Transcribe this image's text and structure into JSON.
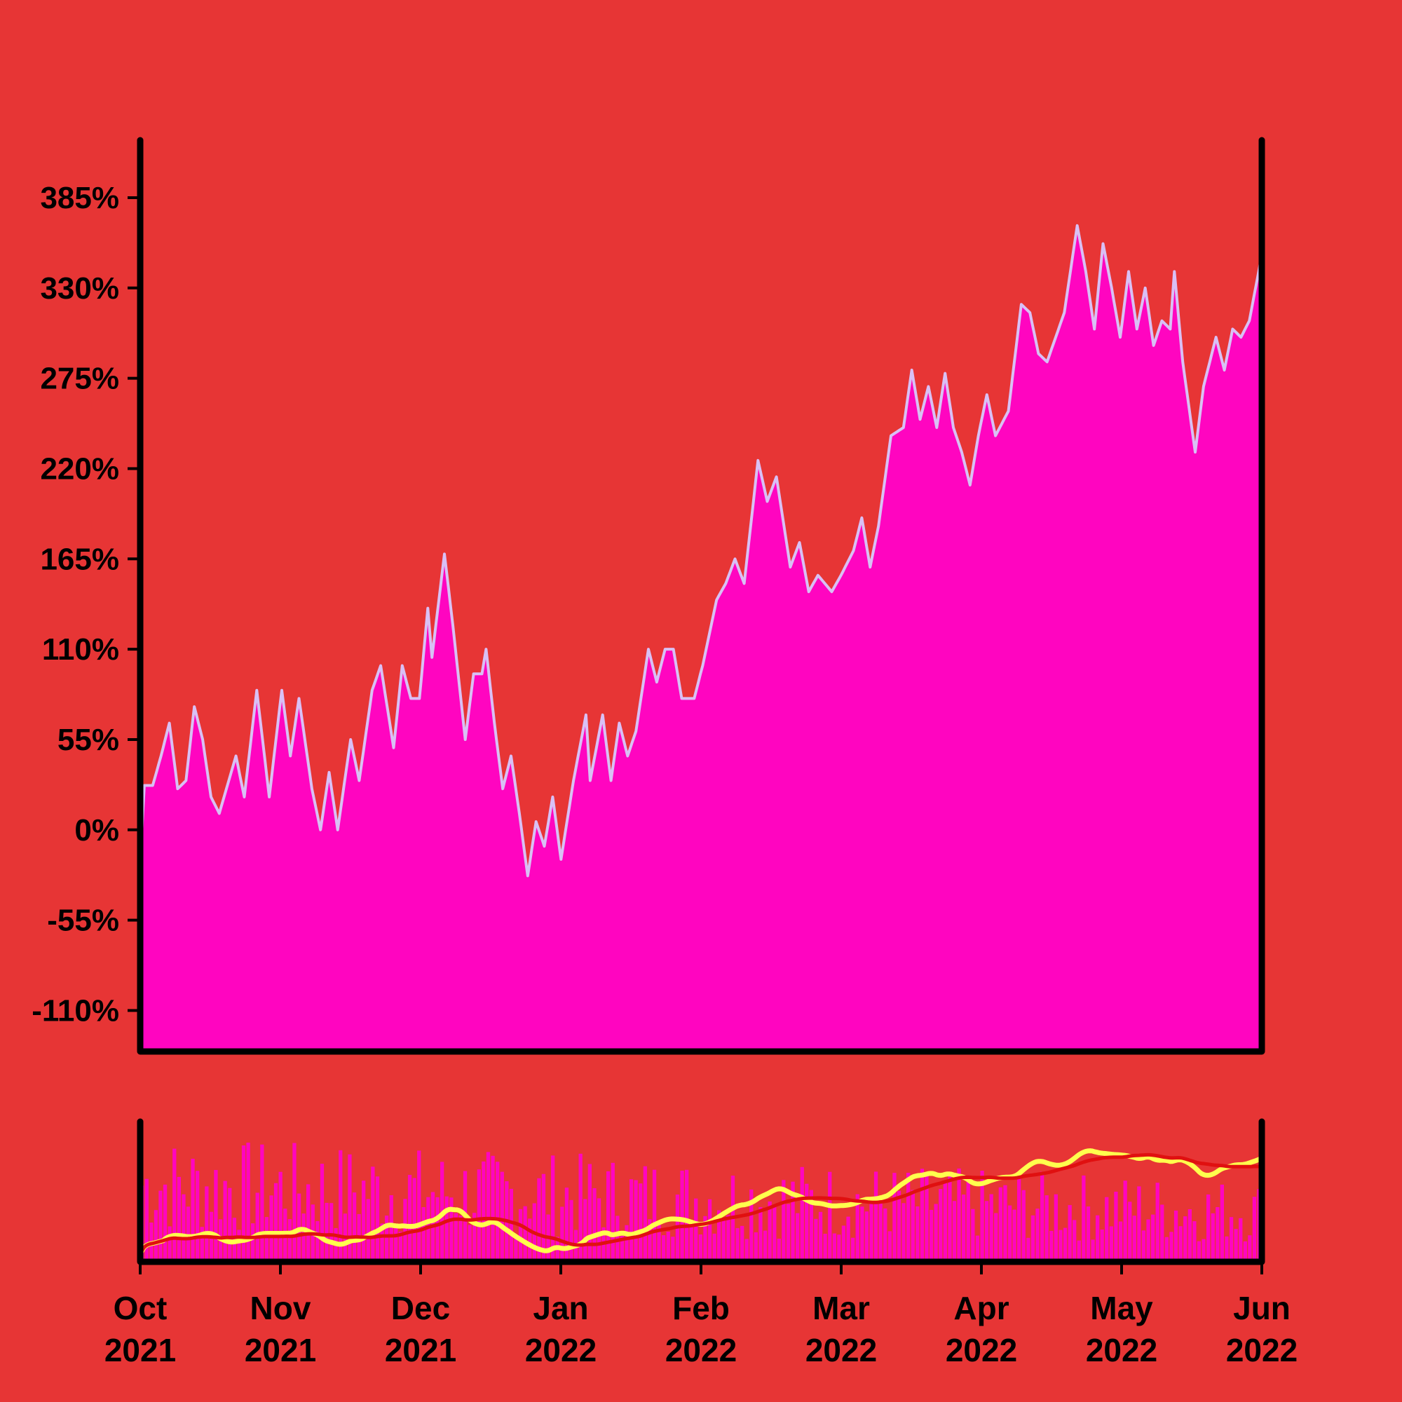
{
  "colors": {
    "background": "#e73535",
    "area_fill": "#ff05c0",
    "area_line": "#d9c0f5",
    "volume_bars": "#ff05c0",
    "fast_ma": "#ffff4d",
    "slow_ma": "#e01010",
    "axis": "#000000"
  },
  "chart_data": [
    {
      "type": "area",
      "panel": "price",
      "ylim": [
        -135,
        420
      ],
      "y_ticks": [
        -110,
        -55,
        0,
        55,
        110,
        165,
        220,
        275,
        330,
        385
      ],
      "y_tick_labels": [
        "-110%",
        "-55%",
        "0%",
        "55%",
        "110%",
        "165%",
        "220%",
        "275%",
        "330%",
        "385%"
      ],
      "x_start": "2021-10-01",
      "x_end": "2022-06-01",
      "keypoints": [
        [
          "2021-10-01",
          -18
        ],
        [
          "2021-10-02",
          27
        ],
        [
          "2021-10-04",
          27
        ],
        [
          "2021-10-06",
          45
        ],
        [
          "2021-10-08",
          65
        ],
        [
          "2021-10-10",
          25
        ],
        [
          "2021-10-12",
          30
        ],
        [
          "2021-10-14",
          75
        ],
        [
          "2021-10-16",
          55
        ],
        [
          "2021-10-18",
          20
        ],
        [
          "2021-10-20",
          10
        ],
        [
          "2021-10-24",
          45
        ],
        [
          "2021-10-26",
          20
        ],
        [
          "2021-10-29",
          85
        ],
        [
          "2021-11-01",
          20
        ],
        [
          "2021-11-04",
          85
        ],
        [
          "2021-11-06",
          45
        ],
        [
          "2021-11-08",
          80
        ],
        [
          "2021-11-11",
          25
        ],
        [
          "2021-11-13",
          0
        ],
        [
          "2021-11-15",
          35
        ],
        [
          "2021-11-17",
          0
        ],
        [
          "2021-11-20",
          55
        ],
        [
          "2021-11-22",
          30
        ],
        [
          "2021-11-25",
          85
        ],
        [
          "2021-11-27",
          100
        ],
        [
          "2021-11-30",
          50
        ],
        [
          "2021-12-02",
          100
        ],
        [
          "2021-12-04",
          80
        ],
        [
          "2021-12-06",
          80
        ],
        [
          "2021-12-08",
          135
        ],
        [
          "2021-12-09",
          105
        ],
        [
          "2021-12-12",
          168
        ],
        [
          "2021-12-14",
          125
        ],
        [
          "2021-12-17",
          55
        ],
        [
          "2021-12-19",
          95
        ],
        [
          "2021-12-21",
          95
        ],
        [
          "2021-12-22",
          110
        ],
        [
          "2021-12-24",
          65
        ],
        [
          "2021-12-26",
          25
        ],
        [
          "2021-12-28",
          45
        ],
        [
          "2021-12-30",
          10
        ],
        [
          "2022-01-01",
          -28
        ],
        [
          "2022-01-03",
          5
        ],
        [
          "2022-01-05",
          -10
        ],
        [
          "2022-01-07",
          20
        ],
        [
          "2022-01-09",
          -18
        ],
        [
          "2022-01-12",
          30
        ],
        [
          "2022-01-15",
          70
        ],
        [
          "2022-01-16",
          30
        ],
        [
          "2022-01-19",
          70
        ],
        [
          "2022-01-21",
          30
        ],
        [
          "2022-01-23",
          65
        ],
        [
          "2022-01-25",
          45
        ],
        [
          "2022-01-27",
          60
        ],
        [
          "2022-01-30",
          110
        ],
        [
          "2022-02-01",
          90
        ],
        [
          "2022-02-03",
          110
        ],
        [
          "2022-02-05",
          110
        ],
        [
          "2022-02-07",
          80
        ],
        [
          "2022-02-10",
          80
        ],
        [
          "2022-02-12",
          100
        ],
        [
          "2022-02-15",
          140
        ],
        [
          "2022-02-17",
          150
        ],
        [
          "2022-02-19",
          165
        ],
        [
          "2022-02-21",
          150
        ],
        [
          "2022-02-24",
          225
        ],
        [
          "2022-02-26",
          200
        ],
        [
          "2022-02-28",
          215
        ],
        [
          "2022-03-03",
          160
        ],
        [
          "2022-03-05",
          175
        ],
        [
          "2022-03-07",
          145
        ],
        [
          "2022-03-09",
          155
        ],
        [
          "2022-03-12",
          145
        ],
        [
          "2022-03-15",
          160
        ],
        [
          "2022-03-17",
          170
        ],
        [
          "2022-03-19",
          190
        ],
        [
          "2022-03-21",
          160
        ],
        [
          "2022-03-23",
          185
        ],
        [
          "2022-03-26",
          240
        ],
        [
          "2022-03-29",
          245
        ],
        [
          "2022-03-31",
          280
        ],
        [
          "2022-04-02",
          250
        ],
        [
          "2022-04-04",
          270
        ],
        [
          "2022-04-06",
          245
        ],
        [
          "2022-04-08",
          278
        ],
        [
          "2022-04-10",
          245
        ],
        [
          "2022-04-12",
          230
        ],
        [
          "2022-04-14",
          210
        ],
        [
          "2022-04-16",
          240
        ],
        [
          "2022-04-18",
          265
        ],
        [
          "2022-04-20",
          240
        ],
        [
          "2022-04-23",
          255
        ],
        [
          "2022-04-26",
          320
        ],
        [
          "2022-04-28",
          315
        ],
        [
          "2022-04-30",
          290
        ],
        [
          "2022-05-02",
          285
        ],
        [
          "2022-05-04",
          300
        ],
        [
          "2022-05-06",
          315
        ],
        [
          "2022-05-09",
          368
        ],
        [
          "2022-05-11",
          340
        ],
        [
          "2022-05-13",
          305
        ],
        [
          "2022-05-15",
          357
        ],
        [
          "2022-05-17",
          330
        ],
        [
          "2022-05-19",
          300
        ],
        [
          "2022-05-21",
          340
        ],
        [
          "2022-05-23",
          305
        ],
        [
          "2022-05-25",
          330
        ],
        [
          "2022-05-27",
          295
        ],
        [
          "2022-05-29",
          310
        ],
        [
          "2022-05-31",
          305
        ],
        [
          "2022-06-01",
          340
        ],
        [
          "2022-06-03",
          285
        ],
        [
          "2022-06-06",
          230
        ],
        [
          "2022-06-08",
          270
        ],
        [
          "2022-06-11",
          300
        ],
        [
          "2022-06-13",
          280
        ],
        [
          "2022-06-15",
          305
        ],
        [
          "2022-06-17",
          300
        ],
        [
          "2022-06-19",
          310
        ],
        [
          "2022-06-22",
          350
        ]
      ]
    },
    {
      "type": "bar",
      "panel": "volume-with-moving-averages",
      "series": [
        {
          "kind": "fast moving average",
          "color": "#ffff4d"
        },
        {
          "kind": "slow moving average",
          "color": "#e01010"
        }
      ]
    }
  ],
  "x_axis": {
    "ticks": [
      {
        "month": "Oct",
        "year": "2021"
      },
      {
        "month": "Nov",
        "year": "2021"
      },
      {
        "month": "Dec",
        "year": "2021"
      },
      {
        "month": "Jan",
        "year": "2022"
      },
      {
        "month": "Feb",
        "year": "2022"
      },
      {
        "month": "Mar",
        "year": "2022"
      },
      {
        "month": "Apr",
        "year": "2022"
      },
      {
        "month": "May",
        "year": "2022"
      },
      {
        "month": "Jun",
        "year": "2022"
      }
    ]
  }
}
